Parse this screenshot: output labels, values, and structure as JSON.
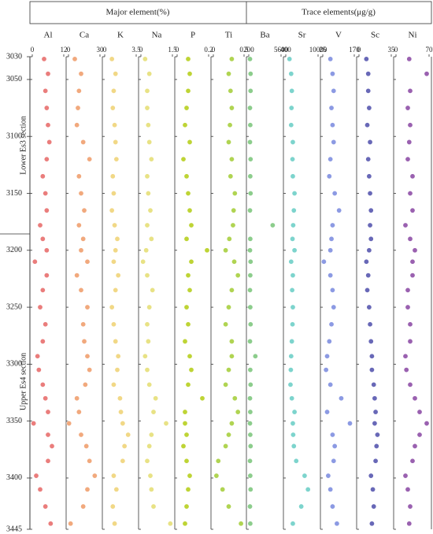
{
  "chart_data": {
    "type": "scatter",
    "group_titles": [
      "Major element(%)",
      "Trace elements(μg/g)"
    ],
    "section_labels": [
      "Lower Es3 section",
      "Upper Es4 section"
    ],
    "ylim": [
      3030,
      3445
    ],
    "yticks": [
      3030,
      3050,
      3100,
      3150,
      3200,
      3250,
      3300,
      3350,
      3400,
      3445
    ],
    "depth": [
      3032,
      3045,
      3060,
      3075,
      3090,
      3105,
      3120,
      3135,
      3150,
      3165,
      3178,
      3190,
      3200,
      3210,
      3222,
      3235,
      3250,
      3265,
      3280,
      3293,
      3305,
      3318,
      3330,
      3342,
      3352,
      3362,
      3372,
      3385,
      3398,
      3410,
      3425,
      3440
    ],
    "panels": [
      {
        "name": "Al",
        "color": "#e8706e",
        "xlim": [
          0,
          12
        ],
        "xticks": [
          0,
          12
        ],
        "values": [
          4.5,
          6,
          5,
          5.5,
          6,
          6.5,
          5.5,
          4,
          5,
          5.5,
          3,
          4,
          5.5,
          1,
          5.5,
          4,
          3,
          5,
          4,
          2,
          2.5,
          4,
          5,
          6,
          0.5,
          6,
          7.5,
          6,
          1.5,
          3,
          5,
          7
        ]
      },
      {
        "name": "Ca",
        "color": "#f0a070",
        "xlim": [
          0,
          30
        ],
        "xticks": [
          0,
          30
        ],
        "values": [
          6,
          12,
          10,
          9,
          8,
          14,
          20,
          10,
          12,
          15,
          10,
          14,
          12,
          18,
          8,
          12,
          18,
          14,
          15,
          18,
          20,
          16,
          8,
          10,
          0.5,
          12,
          17,
          20,
          25,
          18,
          14,
          2
        ]
      },
      {
        "name": "K",
        "color": "#f0d47a",
        "xlim": [
          0,
          3.5
        ],
        "xticks": [
          0,
          3.5
        ],
        "values": [
          0.8,
          1.2,
          1.0,
          0.9,
          1.1,
          1.2,
          1.3,
          0.9,
          1.0,
          0.8,
          1.1,
          1.4,
          1.2,
          1.0,
          1.5,
          1.2,
          0.8,
          1.0,
          1.2,
          1.5,
          1.4,
          1.0,
          1.7,
          1.8,
          2.0,
          2.6,
          2.2,
          2.0,
          1.0,
          1.3,
          0.9,
          1.1
        ]
      },
      {
        "name": "Na",
        "color": "#e6df78",
        "xlim": [
          0,
          1.5
        ],
        "xticks": [
          0,
          1.5
        ],
        "values": [
          0.2,
          0.4,
          0.3,
          0.3,
          0.35,
          0.4,
          0.5,
          0.3,
          0.35,
          0.45,
          0.3,
          0.5,
          0.25,
          0.1,
          0.3,
          0.55,
          0.4,
          0.3,
          0.35,
          0.2,
          0.3,
          0.4,
          0.7,
          0.6,
          1.2,
          0.5,
          0.4,
          0.3,
          0.45,
          0.5,
          0.6,
          1.4
        ]
      },
      {
        "name": "P",
        "color": "#b8d020",
        "xlim": [
          0,
          0.2
        ],
        "xticks": [
          0,
          0.2
        ],
        "values": [
          0.07,
          0.08,
          0.07,
          0.06,
          0.05,
          0.08,
          0.04,
          0.06,
          0.07,
          0.08,
          0.09,
          0.06,
          0.19,
          0.09,
          0.07,
          0.08,
          0.06,
          0.07,
          0.05,
          0.08,
          0.09,
          0.07,
          0.16,
          0.05,
          0.05,
          0.06,
          0.04,
          0.06,
          0.08,
          0.07,
          0.06,
          0.05
        ]
      },
      {
        "name": "Ti",
        "color": "#a8d040",
        "xlim": [
          0,
          0.5
        ],
        "xticks": [
          0,
          0.5
        ],
        "values": [
          0.3,
          0.25,
          0.28,
          0.3,
          0.27,
          0.25,
          0.3,
          0.28,
          0.35,
          0.33,
          0.32,
          0.26,
          0.2,
          0.34,
          0.4,
          0.3,
          0.25,
          0.2,
          0.3,
          0.3,
          0.25,
          0.2,
          0.35,
          0.4,
          0.3,
          0.25,
          0.2,
          0.08,
          0.05,
          0.15,
          0.25,
          0.45
        ]
      },
      {
        "name": "Ba",
        "color": "#80c880",
        "xlim": [
          200,
          5600
        ],
        "xticks": [
          200,
          5600
        ],
        "values": [
          400,
          500,
          500,
          400,
          450,
          400,
          500,
          450,
          500,
          400,
          4200,
          450,
          400,
          500,
          450,
          400,
          450,
          500,
          400,
          1300,
          450,
          500,
          400,
          450,
          400,
          450,
          500,
          400,
          450,
          500,
          400,
          450
        ]
      },
      {
        "name": "Sr",
        "color": "#70d0c8",
        "xlim": [
          400,
          10000
        ],
        "xticks": [
          400,
          10000
        ],
        "values": [
          1500,
          2000,
          2200,
          2100,
          2000,
          2500,
          2400,
          2500,
          3000,
          2800,
          2600,
          2400,
          3000,
          2000,
          2500,
          2300,
          2500,
          2400,
          2200,
          2000,
          1900,
          1800,
          2200,
          3000,
          2500,
          2600,
          2800,
          3500,
          6000,
          7000,
          5000,
          2500
        ]
      },
      {
        "name": "V",
        "color": "#8090e0",
        "xlim": [
          25,
          170
        ],
        "xticks": [
          25,
          170
        ],
        "values": [
          60,
          70,
          75,
          65,
          70,
          75,
          60,
          55,
          80,
          100,
          70,
          65,
          60,
          30,
          60,
          70,
          75,
          65,
          55,
          45,
          40,
          60,
          110,
          45,
          150,
          70,
          80,
          75,
          50,
          60,
          70,
          90
        ]
      },
      {
        "name": "Sc",
        "color": "#5858b0",
        "xlim": [
          0,
          35
        ],
        "xticks": [
          0,
          35
        ],
        "values": [
          8,
          10,
          10,
          11,
          9,
          12,
          10,
          11,
          12,
          13,
          12,
          13,
          11,
          8,
          10,
          9,
          11,
          12,
          13,
          14,
          14,
          16,
          17,
          18,
          17,
          20,
          19,
          18,
          13,
          15,
          16,
          14
        ]
      },
      {
        "name": "Ni",
        "color": "#9050a8",
        "xlim": [
          0,
          70
        ],
        "xticks": [
          0,
          70
        ],
        "values": [
          28,
          65,
          30,
          25,
          30,
          28,
          25,
          35,
          30,
          35,
          20,
          30,
          40,
          35,
          35,
          25,
          25,
          30,
          30,
          20,
          22,
          30,
          40,
          50,
          65,
          50,
          40,
          35,
          20,
          25,
          30,
          28
        ]
      }
    ]
  }
}
